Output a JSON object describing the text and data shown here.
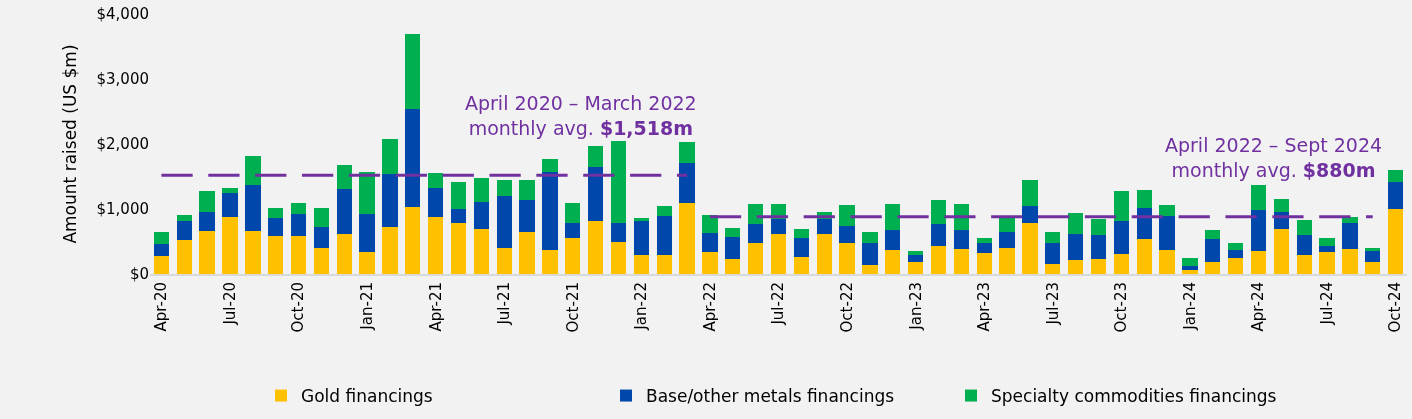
{
  "chart_data": {
    "type": "bar",
    "stacked": true,
    "ylabel": "Amount raised (US $m)",
    "categories": [
      "Apr-20",
      null,
      null,
      "Jul-20",
      null,
      null,
      "Oct-20",
      null,
      null,
      "Jan-21",
      null,
      null,
      "Apr-21",
      null,
      null,
      "Jul-21",
      null,
      null,
      "Oct-21",
      null,
      null,
      "Jan-22",
      null,
      null,
      "Apr-22",
      null,
      null,
      "Jul-22",
      null,
      null,
      "Oct-22",
      null,
      null,
      "Jan-23",
      null,
      null,
      "Apr-23",
      null,
      null,
      "Jul-23",
      null,
      null,
      "Oct-23",
      null,
      null,
      "Jan-24",
      null,
      null,
      "Apr-24",
      null,
      null,
      "Jul-24",
      null,
      null,
      "Oct-24"
    ],
    "series": [
      {
        "name": "Gold financings",
        "color": "#ffc000",
        "values": [
          270,
          520,
          660,
          870,
          660,
          580,
          590,
          400,
          610,
          340,
          720,
          1030,
          870,
          780,
          690,
          400,
          640,
          370,
          550,
          820,
          500,
          290,
          300,
          1090,
          340,
          230,
          480,
          620,
          260,
          620,
          470,
          140,
          370,
          180,
          430,
          390,
          330,
          400,
          780,
          150,
          220,
          230,
          310,
          540,
          370,
          60,
          190,
          250,
          350,
          690,
          290,
          340,
          390,
          190,
          1000
        ]
      },
      {
        "name": "Base/other metals financings",
        "color": "#0047ab",
        "values": [
          190,
          300,
          290,
          370,
          710,
          280,
          340,
          330,
          700,
          590,
          820,
          1510,
          450,
          220,
          420,
          800,
          500,
          1200,
          240,
          830,
          290,
          520,
          590,
          620,
          290,
          340,
          290,
          220,
          290,
          220,
          270,
          330,
          310,
          110,
          340,
          290,
          140,
          240,
          270,
          320,
          390,
          370,
          510,
          470,
          520,
          60,
          350,
          120,
          640,
          270,
          310,
          90,
          400,
          160,
          410
        ]
      },
      {
        "name": "Specialty commodities financings",
        "color": "#00b050",
        "values": [
          190,
          90,
          330,
          90,
          450,
          150,
          160,
          280,
          360,
          640,
          530,
          1150,
          240,
          420,
          370,
          240,
          300,
          200,
          300,
          320,
          1260,
          50,
          150,
          320,
          280,
          140,
          310,
          240,
          150,
          120,
          320,
          180,
          390,
          70,
          370,
          390,
          90,
          240,
          390,
          180,
          330,
          250,
          460,
          280,
          170,
          130,
          130,
          110,
          380,
          190,
          230,
          130,
          80,
          50,
          190
        ]
      },
      {
        "type": "line",
        "color": "#7030a0",
        "line_style": "dashed",
        "values": [
          1518,
          1518,
          1518,
          1518,
          1518,
          1518,
          1518,
          1518,
          1518,
          1518,
          1518,
          1518,
          1518,
          1518,
          1518,
          1518,
          1518,
          1518,
          1518,
          1518,
          1518,
          1518,
          1518,
          1518,
          null,
          null,
          null,
          null,
          null,
          null,
          null,
          null,
          null,
          null,
          null,
          null,
          null,
          null,
          null,
          null,
          null,
          null,
          null,
          null,
          null,
          null,
          null,
          null,
          null,
          null,
          null,
          null,
          null,
          null,
          null
        ]
      },
      {
        "type": "line",
        "color": "#7030a0",
        "line_style": "dashed",
        "values": [
          null,
          null,
          null,
          null,
          null,
          null,
          null,
          null,
          null,
          null,
          null,
          null,
          null,
          null,
          null,
          null,
          null,
          null,
          null,
          null,
          null,
          null,
          null,
          null,
          880,
          880,
          880,
          880,
          880,
          880,
          880,
          880,
          880,
          880,
          880,
          880,
          880,
          880,
          880,
          880,
          880,
          880,
          880,
          880,
          880,
          880,
          880,
          880,
          880,
          880,
          880,
          880,
          880,
          880,
          null
        ]
      }
    ],
    "annotations": [
      "April 2020 – March 2022\nmonthly avg. $1,518m",
      "April 2022 – Sept 2024\nmonthly avg. $880m"
    ],
    "ylim": [
      0,
      4000
    ],
    "yticks": [
      {
        "value": 0,
        "label": "$0"
      },
      {
        "value": 1000,
        "label": "$1,000"
      },
      {
        "value": 2000,
        "label": "$2,000"
      },
      {
        "value": 3000,
        "label": "$3,000"
      },
      {
        "value": 4000,
        "label": "$4,000"
      }
    ],
    "grid": false,
    "legend": "bottom"
  }
}
